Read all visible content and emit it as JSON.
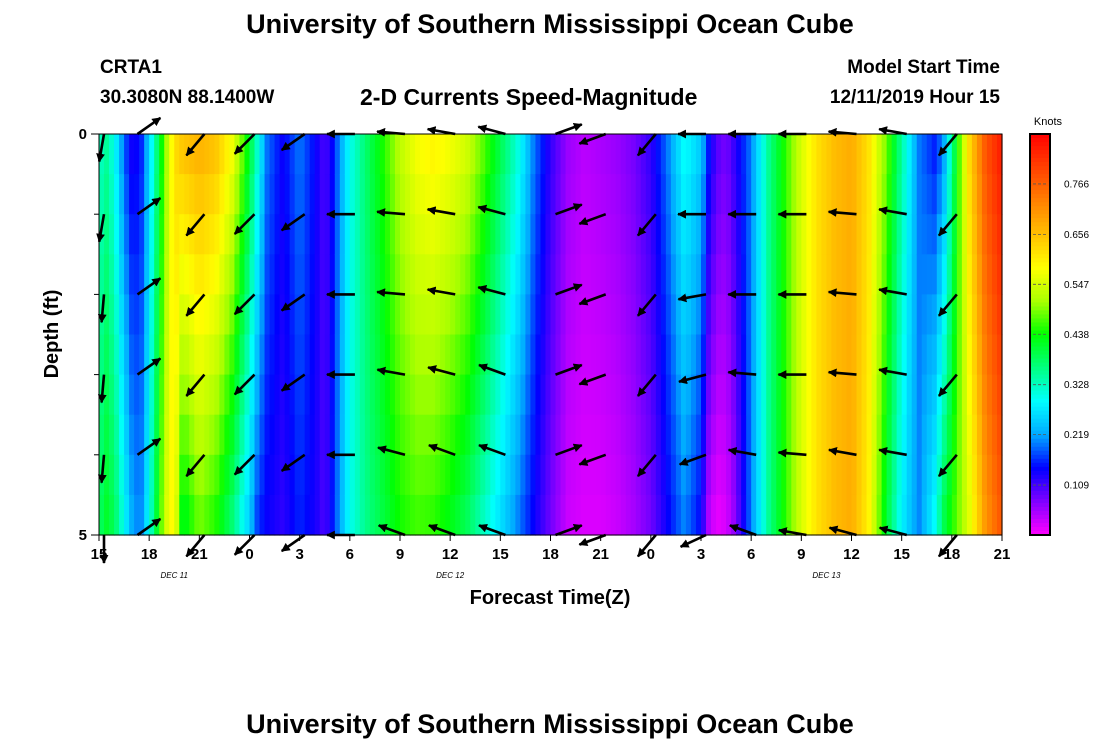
{
  "header": {
    "title": "University of Southern Mississippi Ocean Cube",
    "station_id": "CRTA1",
    "coordinates": "30.3080N 88.1400W",
    "plot_title": "2-D Currents Speed-Magnitude",
    "model_start_label": "Model Start Time",
    "model_start_value": "12/11/2019 Hour 15"
  },
  "footer": {
    "title": "University of Southern Mississippi Ocean Cube"
  },
  "chart_data": {
    "type": "heatmap",
    "title": "2-D Currents Speed-Magnitude",
    "xlabel": "Forecast Time(Z)",
    "ylabel": "Depth (ft)",
    "x_hours_range": [
      0,
      54
    ],
    "x_ticks": [
      {
        "h": 0,
        "label": "15"
      },
      {
        "h": 3,
        "label": "18"
      },
      {
        "h": 6,
        "label": "21"
      },
      {
        "h": 9,
        "label": "0"
      },
      {
        "h": 12,
        "label": "3"
      },
      {
        "h": 15,
        "label": "6"
      },
      {
        "h": 18,
        "label": "9"
      },
      {
        "h": 21,
        "label": "12"
      },
      {
        "h": 24,
        "label": "15"
      },
      {
        "h": 27,
        "label": "18"
      },
      {
        "h": 30,
        "label": "21"
      },
      {
        "h": 33,
        "label": "0"
      },
      {
        "h": 36,
        "label": "3"
      },
      {
        "h": 39,
        "label": "6"
      },
      {
        "h": 42,
        "label": "9"
      },
      {
        "h": 45,
        "label": "12"
      },
      {
        "h": 48,
        "label": "15"
      },
      {
        "h": 51,
        "label": "18"
      },
      {
        "h": 54,
        "label": "21"
      }
    ],
    "date_labels": [
      {
        "h": 4.5,
        "label": "DEC 11"
      },
      {
        "h": 21,
        "label": "DEC 12"
      },
      {
        "h": 43.5,
        "label": "DEC 13"
      }
    ],
    "ylim": [
      0,
      5
    ],
    "y_tick_labels": [
      "0",
      "5"
    ],
    "y_minor_ticks": [
      1,
      2,
      3,
      4
    ],
    "colorbar": {
      "unit": "Knots",
      "range": [
        0.0,
        0.875
      ],
      "ticks": [
        "0.109",
        "0.219",
        "0.328",
        "0.438",
        "0.547",
        "0.656",
        "0.766"
      ],
      "colors": [
        "#ff00ff",
        "#8000ff",
        "#0000ff",
        "#00aaff",
        "#00ffff",
        "#00ff80",
        "#00ff00",
        "#aaff00",
        "#ffff00",
        "#ffc000",
        "#ff8000",
        "#ff4000",
        "#ff0000"
      ]
    },
    "depth_rows": [
      0,
      1,
      2,
      3,
      4,
      5
    ],
    "speed_profile_knots": {
      "hours": [
        0,
        0.5,
        1.0,
        1.5,
        2.0,
        2.5,
        3.0,
        4.0,
        4.5,
        5.0,
        6.0,
        7.0,
        8.0,
        9.0,
        9.5,
        10.0,
        11.0,
        12.0,
        13.0,
        13.5,
        14.0,
        15.0,
        16.0,
        17.0,
        18.0,
        19.0,
        20.0,
        21.0,
        22.0,
        23.0,
        24.0,
        25.0,
        26.0,
        27.0,
        28.0,
        29.0,
        30.0,
        31.0,
        32.0,
        33.0,
        34.0,
        35.0,
        36.0,
        36.5,
        37.0,
        37.5,
        38.0,
        39.0,
        40.0,
        41.0,
        42.0,
        43.0,
        44.0,
        45.0,
        46.0,
        47.0,
        48.0,
        49.0,
        50.0,
        50.5,
        51.0,
        52.0,
        53.0,
        54.0
      ],
      "surface": [
        0.32,
        0.35,
        0.28,
        0.18,
        0.13,
        0.15,
        0.25,
        0.5,
        0.62,
        0.66,
        0.68,
        0.66,
        0.58,
        0.42,
        0.32,
        0.2,
        0.14,
        0.2,
        0.14,
        0.1,
        0.15,
        0.3,
        0.38,
        0.45,
        0.53,
        0.58,
        0.6,
        0.58,
        0.55,
        0.48,
        0.4,
        0.32,
        0.2,
        0.12,
        0.06,
        0.04,
        0.05,
        0.06,
        0.08,
        0.12,
        0.2,
        0.3,
        0.25,
        0.15,
        0.1,
        0.08,
        0.12,
        0.2,
        0.35,
        0.45,
        0.55,
        0.62,
        0.66,
        0.68,
        0.62,
        0.5,
        0.35,
        0.2,
        0.15,
        0.2,
        0.35,
        0.62,
        0.78,
        0.85
      ],
      "bottom": [
        0.38,
        0.42,
        0.38,
        0.3,
        0.22,
        0.2,
        0.3,
        0.55,
        0.6,
        0.4,
        0.48,
        0.44,
        0.36,
        0.24,
        0.16,
        0.14,
        0.12,
        0.16,
        0.13,
        0.1,
        0.16,
        0.3,
        0.36,
        0.4,
        0.44,
        0.46,
        0.45,
        0.42,
        0.38,
        0.32,
        0.26,
        0.2,
        0.14,
        0.08,
        0.03,
        0.02,
        0.02,
        0.03,
        0.05,
        0.08,
        0.14,
        0.2,
        0.14,
        0.03,
        0.01,
        0.02,
        0.06,
        0.2,
        0.35,
        0.45,
        0.55,
        0.62,
        0.66,
        0.68,
        0.6,
        0.42,
        0.28,
        0.2,
        0.3,
        0.4,
        0.45,
        0.55,
        0.7,
        0.78
      ]
    },
    "vector_columns": [
      {
        "h": 0.3,
        "dir": [
          100,
          100,
          95,
          95,
          95,
          90
        ]
      },
      {
        "h": 2.3,
        "dir": [
          -35,
          -35,
          -35,
          -35,
          -35,
          -35
        ]
      },
      {
        "h": 6.3,
        "dir": [
          130,
          130,
          130,
          130,
          130,
          130
        ]
      },
      {
        "h": 9.3,
        "dir": [
          135,
          135,
          135,
          135,
          135,
          135
        ]
      },
      {
        "h": 12.3,
        "dir": [
          145,
          145,
          145,
          145,
          145,
          145
        ]
      },
      {
        "h": 15.3,
        "dir": [
          180,
          180,
          180,
          180,
          180,
          180
        ]
      },
      {
        "h": 18.3,
        "dir": [
          185,
          185,
          185,
          190,
          195,
          200
        ]
      },
      {
        "h": 21.3,
        "dir": [
          190,
          190,
          190,
          195,
          200,
          200
        ]
      },
      {
        "h": 24.3,
        "dir": [
          195,
          195,
          195,
          200,
          200,
          200
        ]
      },
      {
        "h": 27.3,
        "dir": [
          -20,
          -20,
          -20,
          -20,
          -20,
          -20
        ]
      },
      {
        "h": 30.3,
        "dir": [
          160,
          160,
          160,
          160,
          160,
          160
        ]
      },
      {
        "h": 33.3,
        "dir": [
          130,
          130,
          130,
          130,
          130,
          130
        ]
      },
      {
        "h": 36.3,
        "dir": [
          180,
          180,
          170,
          165,
          160,
          155
        ]
      },
      {
        "h": 39.3,
        "dir": [
          180,
          180,
          180,
          185,
          190,
          200
        ]
      },
      {
        "h": 42.3,
        "dir": [
          180,
          180,
          180,
          180,
          185,
          190
        ]
      },
      {
        "h": 45.3,
        "dir": [
          185,
          185,
          185,
          185,
          190,
          195
        ]
      },
      {
        "h": 48.3,
        "dir": [
          190,
          190,
          190,
          190,
          190,
          195
        ]
      },
      {
        "h": 51.3,
        "dir": [
          130,
          130,
          130,
          130,
          130,
          130
        ]
      }
    ]
  }
}
